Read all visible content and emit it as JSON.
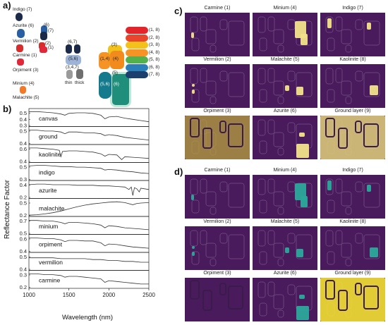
{
  "panels": {
    "a": "a)",
    "b": "b)",
    "c": "c)",
    "d": "d)"
  },
  "panel_a": {
    "swatch_labels": [
      {
        "text": "Indigo (7)",
        "color": "#1b2a49"
      },
      {
        "text": "Azurite (6)",
        "color": "#2a5ea3"
      },
      {
        "text": "Vermilion (2)",
        "color": "#d82b2b"
      },
      {
        "text": "Carmine (1)",
        "color": "#e0283a"
      },
      {
        "text": "Orpiment (3)",
        "color": "#f4b11b"
      },
      {
        "text": "Minium (4)",
        "color": "#f07a2a"
      },
      {
        "text": "Malachite (5)",
        "color": "#49b07a"
      }
    ],
    "num_tags": [
      "(6)",
      "(7)",
      "(2)",
      "(1)"
    ],
    "mix_tags": [
      "(6,7)",
      "(5,6)",
      "(3,4,7)"
    ],
    "thin_label": "thin",
    "thick_label": "thick",
    "grid_tags": [
      "(3)",
      "(1,4)",
      "(4)",
      "(5)",
      "(5,6)",
      "(6)"
    ],
    "stripe_tags": [
      "(1, 8)",
      "(2, 8)",
      "(3, 8)",
      "(4, 8)",
      "(5, 8)",
      "(6, 8)",
      "(7, 8)"
    ],
    "stripe_colors": [
      "#e3242b",
      "#e8452c",
      "#f3c21a",
      "#f59324",
      "#52b04d",
      "#2b7fb8",
      "#1c3f6e"
    ]
  },
  "chart_data": {
    "type": "line",
    "xlabel": "Wavelength (nm)",
    "ylabel": "Reflectance Factor",
    "xlim": [
      1000,
      2500
    ],
    "x_ticks": [
      "1000",
      "1500",
      "2000",
      "2500"
    ],
    "series": [
      {
        "name": "canvas",
        "ticks": [
          "0.5",
          "0.4",
          "0.3"
        ],
        "ylim": [
          0.25,
          0.55
        ],
        "x": [
          1000,
          1100,
          1200,
          1300,
          1400,
          1450,
          1500,
          1600,
          1700,
          1800,
          1900,
          1950,
          2000,
          2100,
          2200,
          2300,
          2400,
          2500
        ],
        "y": [
          0.5,
          0.5,
          0.49,
          0.48,
          0.46,
          0.44,
          0.47,
          0.48,
          0.48,
          0.47,
          0.44,
          0.38,
          0.41,
          0.42,
          0.39,
          0.37,
          0.35,
          0.33
        ]
      },
      {
        "name": "ground",
        "ticks": [
          "0.5",
          "0.4"
        ],
        "ylim": [
          0.36,
          0.56
        ],
        "x": [
          1000,
          1100,
          1200,
          1300,
          1400,
          1450,
          1500,
          1600,
          1700,
          1800,
          1900,
          1950,
          2000,
          2100,
          2200,
          2300,
          2400,
          2500
        ],
        "y": [
          0.52,
          0.52,
          0.51,
          0.51,
          0.5,
          0.48,
          0.5,
          0.5,
          0.49,
          0.49,
          0.48,
          0.46,
          0.47,
          0.46,
          0.44,
          0.43,
          0.42,
          0.41
        ]
      },
      {
        "name": "kaolinite",
        "ticks": [
          "0.6",
          "0.4"
        ],
        "ylim": [
          0.35,
          0.66
        ],
        "x": [
          1000,
          1100,
          1200,
          1300,
          1380,
          1400,
          1420,
          1500,
          1600,
          1700,
          1800,
          1900,
          1950,
          2000,
          2100,
          2160,
          2200,
          2300,
          2400,
          2500
        ],
        "y": [
          0.6,
          0.6,
          0.59,
          0.58,
          0.56,
          0.45,
          0.54,
          0.55,
          0.55,
          0.54,
          0.53,
          0.5,
          0.46,
          0.49,
          0.48,
          0.4,
          0.45,
          0.44,
          0.43,
          0.42
        ]
      },
      {
        "name": "indigo",
        "ticks": [
          "0.5",
          "0.3"
        ],
        "ylim": [
          0.25,
          0.56
        ],
        "x": [
          1000,
          1100,
          1200,
          1300,
          1400,
          1500,
          1600,
          1700,
          1800,
          1900,
          1950,
          2000,
          2100,
          2200,
          2300,
          2400,
          2500
        ],
        "y": [
          0.5,
          0.51,
          0.51,
          0.5,
          0.49,
          0.49,
          0.48,
          0.48,
          0.47,
          0.46,
          0.43,
          0.44,
          0.43,
          0.41,
          0.4,
          0.38,
          0.37
        ]
      },
      {
        "name": "azurite",
        "ticks": [
          "0.4",
          "0.2"
        ],
        "ylim": [
          0.15,
          0.45
        ],
        "x": [
          1000,
          1100,
          1200,
          1300,
          1400,
          1500,
          1600,
          1700,
          1800,
          1900,
          2000,
          2100,
          2200,
          2250,
          2280,
          2300,
          2320,
          2350,
          2380,
          2400,
          2500
        ],
        "y": [
          0.38,
          0.39,
          0.39,
          0.38,
          0.38,
          0.38,
          0.37,
          0.37,
          0.37,
          0.36,
          0.36,
          0.35,
          0.34,
          0.3,
          0.34,
          0.2,
          0.33,
          0.31,
          0.26,
          0.32,
          0.3
        ]
      },
      {
        "name": "malachite",
        "ticks": [
          "0.5",
          "0.2"
        ],
        "ylim": [
          0.12,
          0.55
        ],
        "x": [
          1000,
          1100,
          1200,
          1300,
          1400,
          1500,
          1600,
          1700,
          1800,
          1900,
          2000,
          2100,
          2200,
          2300,
          2350,
          2400,
          2500
        ],
        "y": [
          0.15,
          0.16,
          0.18,
          0.21,
          0.25,
          0.3,
          0.35,
          0.39,
          0.42,
          0.44,
          0.46,
          0.47,
          0.45,
          0.4,
          0.43,
          0.44,
          0.45
        ]
      },
      {
        "name": "minium",
        "ticks": [
          "0.7",
          "0.5"
        ],
        "ylim": [
          0.45,
          0.72
        ],
        "x": [
          1000,
          1100,
          1200,
          1300,
          1400,
          1450,
          1500,
          1600,
          1700,
          1800,
          1900,
          1950,
          2000,
          2100,
          2200,
          2300,
          2400,
          2500
        ],
        "y": [
          0.66,
          0.66,
          0.65,
          0.65,
          0.63,
          0.61,
          0.63,
          0.63,
          0.62,
          0.61,
          0.59,
          0.55,
          0.58,
          0.57,
          0.55,
          0.54,
          0.53,
          0.52
        ]
      },
      {
        "name": "orpiment",
        "ticks": [
          "0.6",
          "0.4"
        ],
        "ylim": [
          0.36,
          0.66
        ],
        "x": [
          1000,
          1100,
          1200,
          1300,
          1400,
          1450,
          1500,
          1600,
          1700,
          1800,
          1900,
          1950,
          2000,
          2100,
          2200,
          2300,
          2400,
          2500
        ],
        "y": [
          0.6,
          0.6,
          0.59,
          0.59,
          0.57,
          0.54,
          0.56,
          0.56,
          0.55,
          0.55,
          0.52,
          0.47,
          0.5,
          0.49,
          0.47,
          0.45,
          0.44,
          0.43
        ]
      },
      {
        "name": "vermilion",
        "ticks": [
          "0.5",
          "0.4"
        ],
        "ylim": [
          0.36,
          0.56
        ],
        "x": [
          1000,
          1100,
          1200,
          1300,
          1400,
          1500,
          1600,
          1700,
          1800,
          1900,
          2000,
          2100,
          2200,
          2300,
          2400,
          2500
        ],
        "y": [
          0.5,
          0.5,
          0.5,
          0.5,
          0.49,
          0.49,
          0.49,
          0.49,
          0.48,
          0.48,
          0.47,
          0.47,
          0.46,
          0.46,
          0.45,
          0.45
        ]
      },
      {
        "name": "carmine",
        "ticks": [
          "0.3",
          "0.2"
        ],
        "ylim": [
          0.15,
          0.36
        ],
        "x": [
          1000,
          1100,
          1200,
          1300,
          1400,
          1450,
          1500,
          1600,
          1700,
          1800,
          1900,
          1950,
          2000,
          2100,
          2200,
          2300,
          2400,
          2500
        ],
        "y": [
          0.32,
          0.32,
          0.31,
          0.31,
          0.3,
          0.28,
          0.29,
          0.29,
          0.28,
          0.27,
          0.26,
          0.22,
          0.24,
          0.23,
          0.22,
          0.21,
          0.2,
          0.2
        ]
      }
    ]
  },
  "panel_c": {
    "titles": [
      "Carmine (1)",
      "Minium (4)",
      "Indigo (7)",
      "Vermilion (2)",
      "Malachite (5)",
      "Kaolinite (8)",
      "Orpiment (3)",
      "Azurite (6)",
      "Ground layer (9)"
    ],
    "bg_color": "#4a1b5c",
    "hl_color": "#f3e28a"
  },
  "panel_d": {
    "titles": [
      "Carmine (1)",
      "Minium (4)",
      "Indigo (7)",
      "Vermilion (2)",
      "Malachite (5)",
      "Kaolinite (8)",
      "Orpiment (3)",
      "Azurite (6)",
      "Ground layer (9)"
    ],
    "bg_color": "#4a1b5c",
    "hl_color": "#2ba89a",
    "yellow_color": "#f3e032"
  }
}
